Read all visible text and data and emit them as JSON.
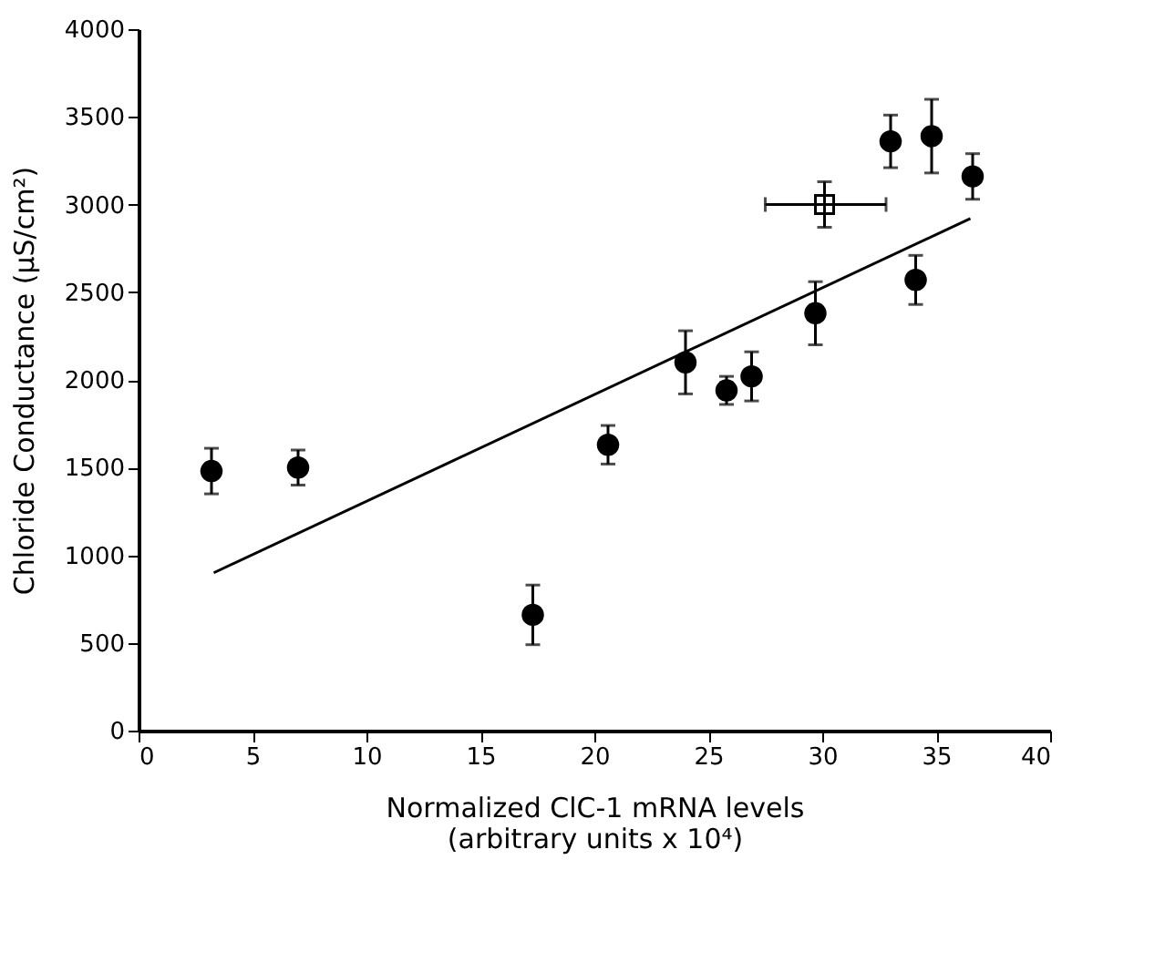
{
  "chart_data": {
    "type": "scatter",
    "xlabel": "Normalized ClC-1 mRNA levels\n(arbitrary units x 10⁴)",
    "ylabel": "Chloride Conductance (μS/cm²)",
    "xlim": [
      0,
      40
    ],
    "ylim": [
      0,
      4000
    ],
    "xticks": [
      0,
      5,
      10,
      15,
      20,
      25,
      30,
      35,
      40
    ],
    "yticks": [
      0,
      500,
      1000,
      1500,
      2000,
      2500,
      3000,
      3500,
      4000
    ],
    "grid": false,
    "series": [
      {
        "marker": "circle",
        "color": "#000000",
        "x": [
          3.2,
          7.0,
          17.3,
          20.6,
          24.0,
          25.8,
          26.9,
          29.7,
          33.0,
          34.1,
          34.8,
          36.6
        ],
        "values": [
          1480,
          1500,
          660,
          1630,
          2100,
          1940,
          2020,
          2380,
          3360,
          2570,
          3390,
          3160
        ],
        "errors": [
          130,
          100,
          170,
          110,
          180,
          80,
          140,
          180,
          150,
          140,
          210,
          130
        ]
      },
      {
        "marker": "square",
        "color": "#000000",
        "x": [
          30.1
        ],
        "values": [
          3000
        ],
        "errors": [
          130
        ],
        "xerrors": [
          [
            27.5,
            32.8
          ]
        ]
      },
      {
        "type": "line",
        "color": "#000000",
        "x": [
          3.3,
          36.5
        ],
        "values": [
          900,
          2920
        ]
      }
    ]
  }
}
